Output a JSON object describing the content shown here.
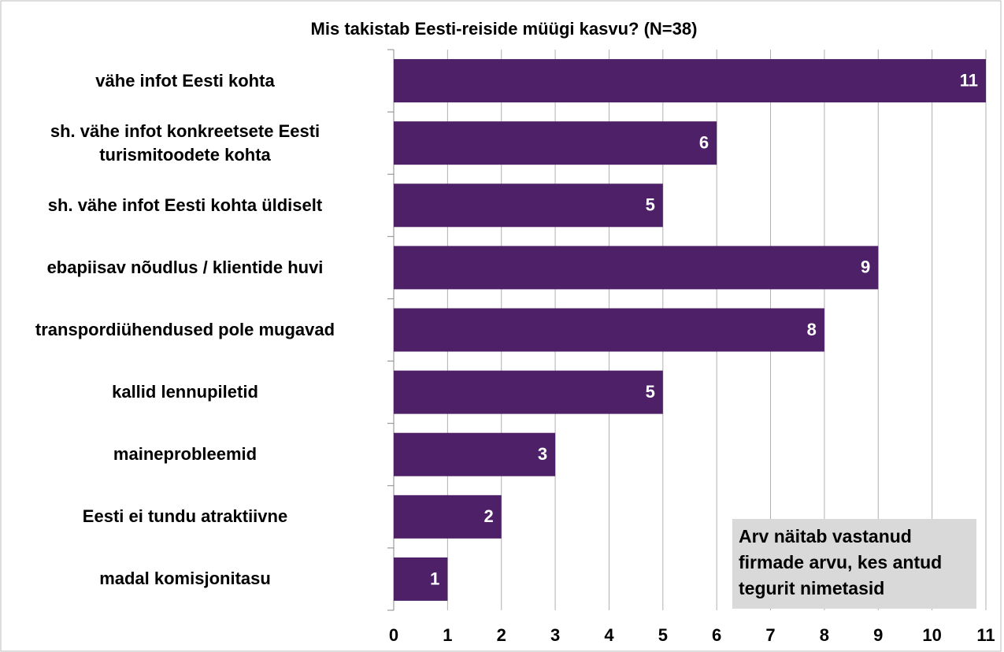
{
  "chart_data": {
    "type": "bar",
    "orientation": "horizontal",
    "title": "Mis takistab Eesti-reiside müügi kasvu? (N=38)",
    "categories": [
      "vähe infot Eesti kohta",
      "sh. vähe infot konkreetsete Eesti turismitoodete kohta",
      "sh. vähe infot Eesti kohta üldiselt",
      "ebapiisav nõudlus / klientide huvi",
      "transpordiühendused pole mugavad",
      "kallid lennupiletid",
      "maineprobleemid",
      "Eesti ei tundu atraktiivne",
      "madal komisjonitasu"
    ],
    "values": [
      11,
      6,
      5,
      9,
      8,
      5,
      3,
      2,
      1
    ],
    "color": "#4e2068",
    "xlim": [
      0,
      11
    ],
    "xticks": [
      0,
      1,
      2,
      3,
      4,
      5,
      6,
      7,
      8,
      9,
      10,
      11
    ],
    "grid": true,
    "annotation": "Arv näitab vastanud firmade arvu, kes antud tegurit nimetasid"
  }
}
